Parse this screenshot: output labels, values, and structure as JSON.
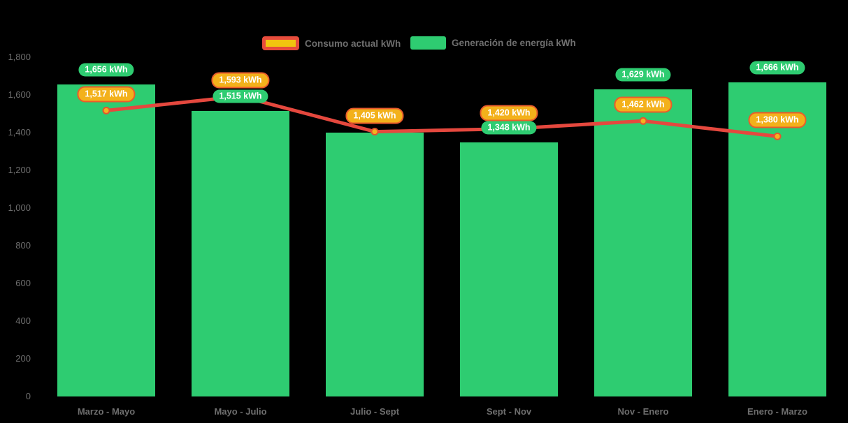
{
  "colors": {
    "background": "#000000",
    "bar_green": "#2ecc71",
    "line_red": "#e5483e",
    "marker_fill": "#f5b120",
    "marker_ring": "#e2572e",
    "pill_orange_fill": "#f3b11b",
    "pill_orange_border": "#ea5c2b",
    "legend_yellow": "#f1c40f",
    "legend_red": "#e74c3c",
    "axis_text": "#6e6e6e",
    "legend_text": "#6f6f6f"
  },
  "chart_data": {
    "type": "bar",
    "title": "",
    "xlabel": "",
    "ylabel": "",
    "categories": [
      "Marzo - Mayo",
      "Mayo - Julio",
      "Julio - Sept",
      "Sept - Nov",
      "Nov - Enero",
      "Enero - Marzo"
    ],
    "series": [
      {
        "name": "Generación de energía kWh",
        "type": "bar",
        "values": [
          1656,
          1515,
          1400,
          1348,
          1629,
          1666
        ],
        "labels": [
          "1,656 kWh",
          "1,515 kWh",
          null,
          "1,348 kWh",
          "1,629 kWh",
          "1,666 kWh"
        ]
      },
      {
        "name": "Consumo actual kWh",
        "type": "line",
        "values": [
          1517,
          1593,
          1405,
          1420,
          1462,
          1380
        ],
        "labels": [
          "1,517 kWh",
          "1,593 kWh",
          "1,405 kWh",
          "1,420 kWh",
          "1,462 kWh",
          "1,380 kWh"
        ]
      }
    ],
    "ylim": [
      0,
      1800
    ],
    "yticks": [
      0,
      200,
      400,
      600,
      800,
      1000,
      1200,
      1400,
      1600,
      1800
    ],
    "ytick_labels": [
      "0",
      "200",
      "400",
      "600",
      "800",
      "1,000",
      "1,200",
      "1,400",
      "1,600",
      "1,800"
    ],
    "legend_position": "top",
    "grid": false
  }
}
